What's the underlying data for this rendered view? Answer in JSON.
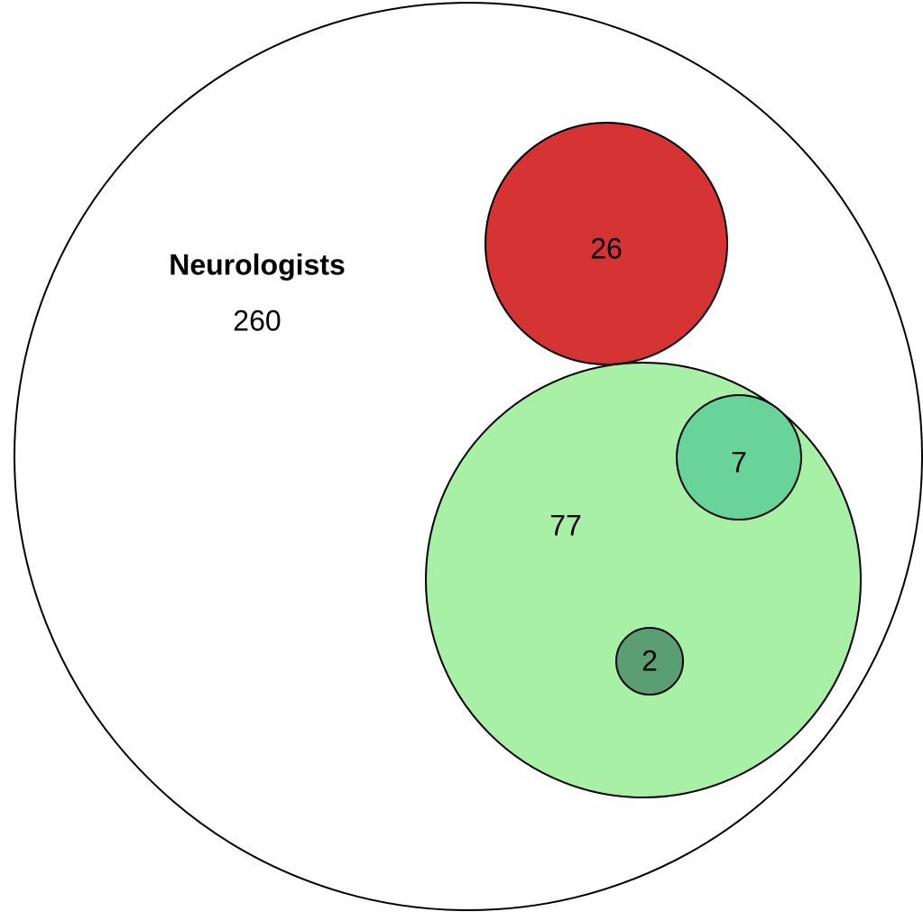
{
  "nodes": [
    {
      "label": "Neurologists",
      "value": 260
    },
    {
      "value": 26
    },
    {
      "value": 77
    },
    {
      "value": 7
    },
    {
      "value": 2
    }
  ]
}
